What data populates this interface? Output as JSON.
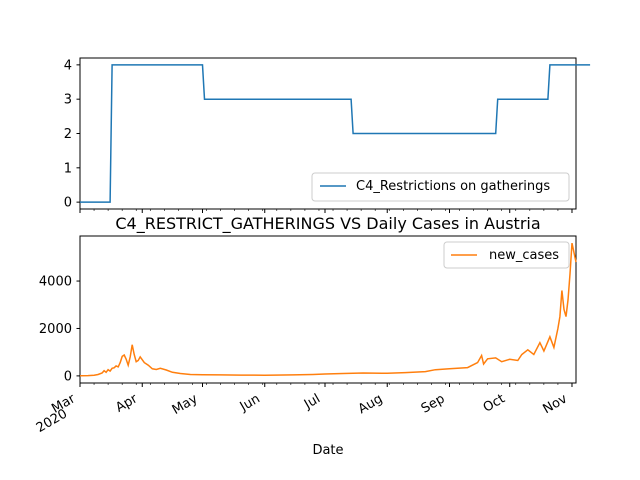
{
  "chart_data": [
    {
      "type": "line",
      "title": "",
      "ylim": [
        -0.2,
        4.2
      ],
      "yticks": [
        "0",
        "1",
        "2",
        "3",
        "4"
      ],
      "legend_location": "lower-right",
      "color": "#1f77b4",
      "series": [
        {
          "name": "C4_Restrictions on gatherings",
          "points": [
            [
              "2020-03-01",
              0
            ],
            [
              "2020-03-16",
              0
            ],
            [
              "2020-03-17",
              4
            ],
            [
              "2020-05-01",
              4
            ],
            [
              "2020-05-02",
              3
            ],
            [
              "2020-07-14",
              3
            ],
            [
              "2020-07-15",
              2
            ],
            [
              "2020-09-24",
              2
            ],
            [
              "2020-09-25",
              3
            ],
            [
              "2020-10-20",
              3
            ],
            [
              "2020-10-21",
              4
            ],
            [
              "2020-11-10",
              4
            ]
          ]
        }
      ]
    },
    {
      "type": "line",
      "title": "C4_RESTRICT_GATHERINGS VS Daily Cases in Austria",
      "xlabel": "Date",
      "ylim": [
        -300,
        5900
      ],
      "yticks": [
        "0",
        "2000",
        "4000"
      ],
      "xticks": [
        "Mar\n2020",
        "Apr",
        "May",
        "Jun",
        "Jul",
        "Aug",
        "Sep",
        "Oct",
        "Nov"
      ],
      "legend_location": "top-right",
      "color": "#ff7f0e",
      "series": [
        {
          "name": "new_cases",
          "points": [
            [
              "2020-03-01",
              5
            ],
            [
              "2020-03-05",
              10
            ],
            [
              "2020-03-08",
              30
            ],
            [
              "2020-03-10",
              60
            ],
            [
              "2020-03-12",
              120
            ],
            [
              "2020-03-13",
              220
            ],
            [
              "2020-03-14",
              150
            ],
            [
              "2020-03-15",
              260
            ],
            [
              "2020-03-16",
              200
            ],
            [
              "2020-03-17",
              320
            ],
            [
              "2020-03-18",
              340
            ],
            [
              "2020-03-19",
              420
            ],
            [
              "2020-03-20",
              380
            ],
            [
              "2020-03-21",
              560
            ],
            [
              "2020-03-22",
              820
            ],
            [
              "2020-03-23",
              880
            ],
            [
              "2020-03-24",
              700
            ],
            [
              "2020-03-25",
              450
            ],
            [
              "2020-03-26",
              800
            ],
            [
              "2020-03-27",
              1310
            ],
            [
              "2020-03-28",
              900
            ],
            [
              "2020-03-29",
              600
            ],
            [
              "2020-03-30",
              650
            ],
            [
              "2020-03-31",
              800
            ],
            [
              "2020-04-02",
              560
            ],
            [
              "2020-04-04",
              450
            ],
            [
              "2020-04-06",
              300
            ],
            [
              "2020-04-08",
              270
            ],
            [
              "2020-04-10",
              320
            ],
            [
              "2020-04-13",
              250
            ],
            [
              "2020-04-16",
              150
            ],
            [
              "2020-04-20",
              100
            ],
            [
              "2020-04-25",
              60
            ],
            [
              "2020-05-01",
              50
            ],
            [
              "2020-05-10",
              40
            ],
            [
              "2020-05-20",
              35
            ],
            [
              "2020-06-01",
              30
            ],
            [
              "2020-06-15",
              40
            ],
            [
              "2020-06-25",
              60
            ],
            [
              "2020-07-01",
              80
            ],
            [
              "2020-07-10",
              100
            ],
            [
              "2020-07-20",
              120
            ],
            [
              "2020-08-01",
              110
            ],
            [
              "2020-08-10",
              140
            ],
            [
              "2020-08-20",
              180
            ],
            [
              "2020-08-25",
              260
            ],
            [
              "2020-09-01",
              300
            ],
            [
              "2020-09-05",
              320
            ],
            [
              "2020-09-10",
              350
            ],
            [
              "2020-09-15",
              560
            ],
            [
              "2020-09-17",
              860
            ],
            [
              "2020-09-18",
              500
            ],
            [
              "2020-09-20",
              720
            ],
            [
              "2020-09-24",
              760
            ],
            [
              "2020-09-27",
              600
            ],
            [
              "2020-10-01",
              700
            ],
            [
              "2020-10-05",
              650
            ],
            [
              "2020-10-07",
              900
            ],
            [
              "2020-10-10",
              1100
            ],
            [
              "2020-10-13",
              900
            ],
            [
              "2020-10-16",
              1400
            ],
            [
              "2020-10-18",
              1050
            ],
            [
              "2020-10-21",
              1650
            ],
            [
              "2020-10-23",
              1200
            ],
            [
              "2020-10-25",
              2000
            ],
            [
              "2020-10-26",
              2500
            ],
            [
              "2020-10-27",
              3600
            ],
            [
              "2020-10-28",
              2800
            ],
            [
              "2020-10-29",
              2500
            ],
            [
              "2020-10-30",
              3200
            ],
            [
              "2020-10-31",
              4300
            ],
            [
              "2020-11-01",
              5600
            ],
            [
              "2020-11-02",
              5200
            ],
            [
              "2020-11-03",
              4800
            ]
          ]
        }
      ]
    }
  ]
}
